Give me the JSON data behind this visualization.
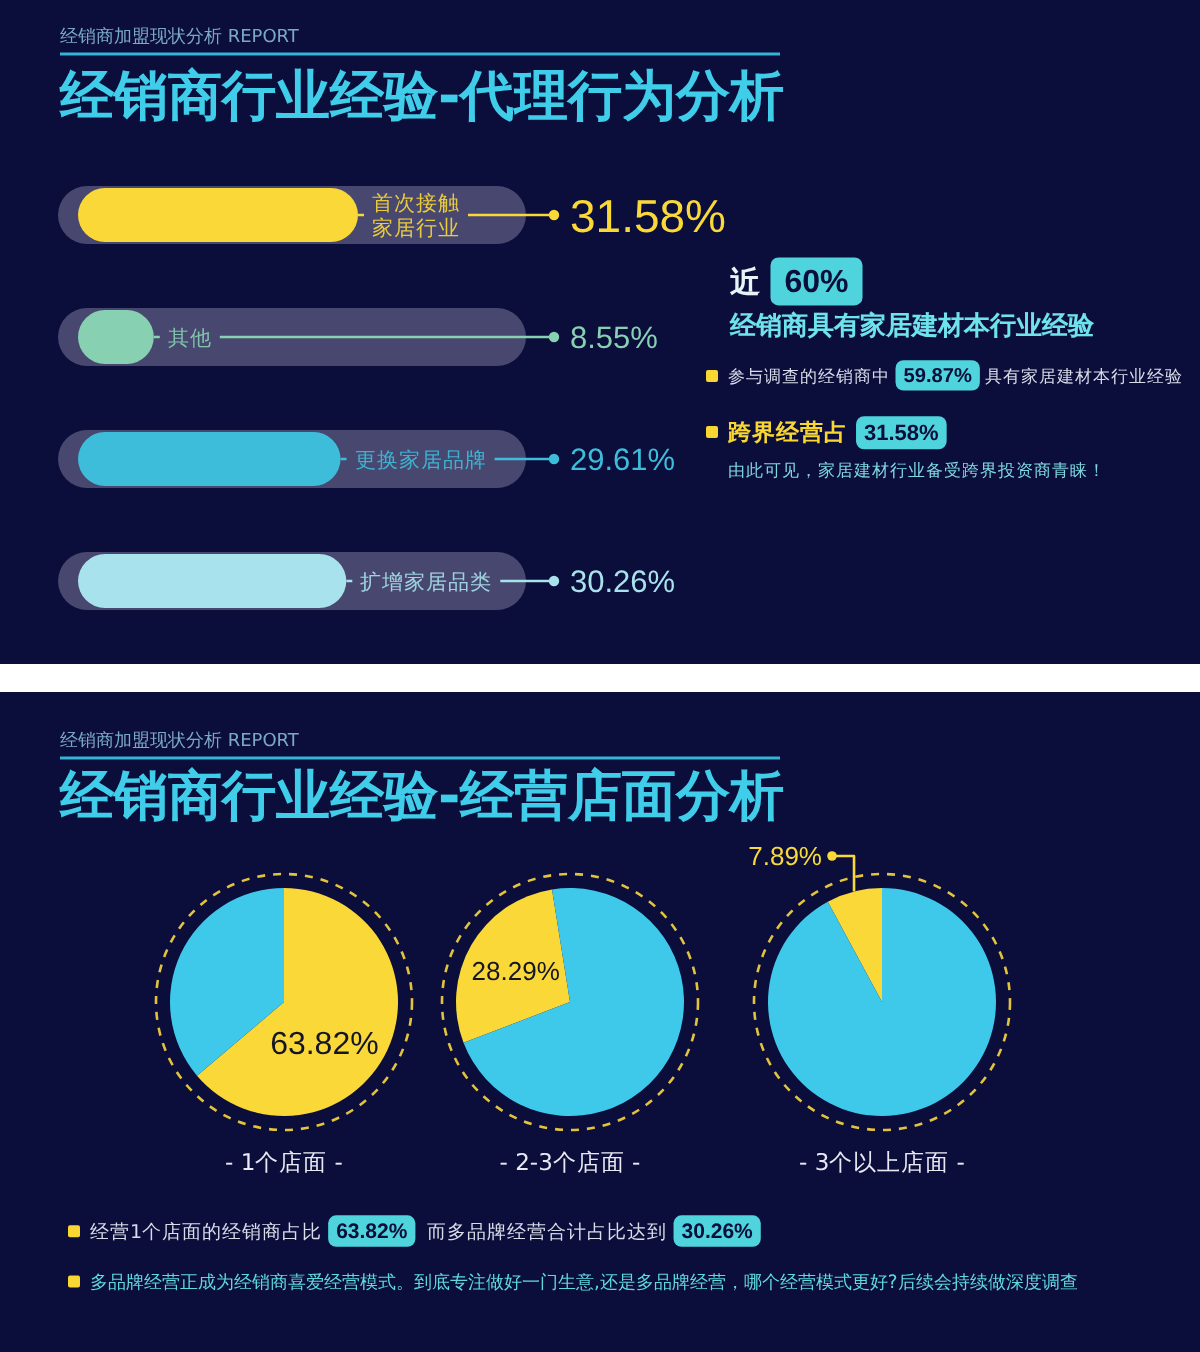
{
  "chart_data": [
    {
      "type": "bar",
      "orientation": "horizontal",
      "title": "经销商行业经验-代理行为分析",
      "subtitle": "经销商加盟现状分析 REPORT",
      "categories": [
        "首次接触家居行业",
        "其他",
        "更换家居品牌",
        "扩增家居品类"
      ],
      "values": [
        31.58,
        8.55,
        29.61,
        30.26
      ],
      "colors": [
        "#f9d838",
        "#88d0b2",
        "#3dbdd9",
        "#a8e2ec"
      ],
      "value_labels": [
        "31.58%",
        "8.55%",
        "29.61%",
        "30.26%"
      ],
      "annotations": [
        "近 60%",
        "经销商具有家居建材本行业经验",
        "参与调查的经销商中 59.87% 具有家居建材本行业经验",
        "跨界经营占 31.58%",
        "由此可见，家居建材行业备受跨界投资商青睐！"
      ]
    },
    {
      "type": "pie",
      "title": "经销商行业经验-经营店面分析",
      "subtitle": "经销商加盟现状分析 REPORT",
      "categories": [
        null,
        null
      ],
      "values": [
        63.82,
        36.18
      ],
      "colors": [
        "#f9d838",
        "#3ec9ea"
      ],
      "value_labels": [
        "63.82%",
        null
      ],
      "xlabel": "- 1个店面 -",
      "annotations": [
        "经营1个店面的经销商占比 63.82%  而多品牌经营合计占比达到 30.26%",
        "多品牌经营正成为经销商喜爱经营模式。到底专注做好一门生意,还是多品牌经营，哪个经营模式更好?后续会持续做深度调查"
      ]
    },
    {
      "type": "pie",
      "categories": [
        null,
        null
      ],
      "values": [
        28.29,
        71.71
      ],
      "colors": [
        "#f9d838",
        "#3ec9ea"
      ],
      "value_labels": [
        "28.29%",
        null
      ],
      "xlabel": "- 2-3个店面 -"
    },
    {
      "type": "pie",
      "categories": [
        null,
        null
      ],
      "values": [
        7.89,
        92.11
      ],
      "colors": [
        "#f9d838",
        "#3ec9ea"
      ],
      "value_labels": [
        "7.89%",
        null
      ],
      "xlabel": "- 3个以上店面 -"
    }
  ]
}
